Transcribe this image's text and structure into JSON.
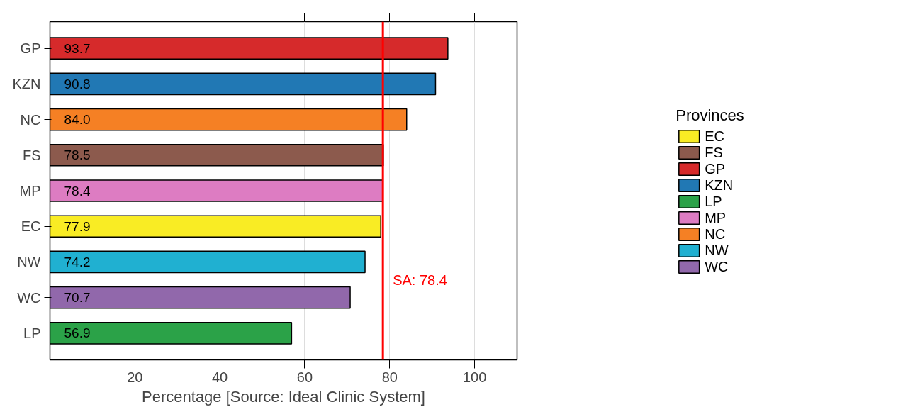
{
  "chart_data": {
    "type": "bar",
    "orientation": "horizontal",
    "xlabel": "Percentage [Source: Ideal Clinic System]",
    "legend_title": "Provinces",
    "categories": [
      "GP",
      "KZN",
      "NC",
      "FS",
      "MP",
      "EC",
      "NW",
      "WC",
      "LP"
    ],
    "series": [
      {
        "name": "EC",
        "color": "#f9ec24",
        "values": [
          null,
          null,
          null,
          null,
          null,
          77.9,
          null,
          null,
          null
        ],
        "value_labels": [
          null,
          null,
          null,
          null,
          null,
          "77.9",
          null,
          null,
          null
        ]
      },
      {
        "name": "FS",
        "color": "#8c5a4d",
        "values": [
          null,
          null,
          null,
          78.5,
          null,
          null,
          null,
          null,
          null
        ],
        "value_labels": [
          null,
          null,
          null,
          "78.5",
          null,
          null,
          null,
          null,
          null
        ]
      },
      {
        "name": "GP",
        "color": "#d62a2b",
        "values": [
          93.7,
          null,
          null,
          null,
          null,
          null,
          null,
          null,
          null
        ],
        "value_labels": [
          "93.7",
          null,
          null,
          null,
          null,
          null,
          null,
          null,
          null
        ]
      },
      {
        "name": "KZN",
        "color": "#2178b4",
        "values": [
          null,
          90.8,
          null,
          null,
          null,
          null,
          null,
          null,
          null
        ],
        "value_labels": [
          null,
          "90.8",
          null,
          null,
          null,
          null,
          null,
          null,
          null
        ]
      },
      {
        "name": "LP",
        "color": "#2ba248",
        "values": [
          null,
          null,
          null,
          null,
          null,
          null,
          null,
          null,
          56.9
        ],
        "value_labels": [
          null,
          null,
          null,
          null,
          null,
          null,
          null,
          null,
          "56.9"
        ]
      },
      {
        "name": "MP",
        "color": "#dd7cc2",
        "values": [
          null,
          null,
          null,
          null,
          78.4,
          null,
          null,
          null,
          null
        ],
        "value_labels": [
          null,
          null,
          null,
          null,
          "78.4",
          null,
          null,
          null,
          null
        ]
      },
      {
        "name": "NC",
        "color": "#f58024",
        "values": [
          null,
          null,
          84.0,
          null,
          null,
          null,
          null,
          null,
          null
        ],
        "value_labels": [
          null,
          null,
          "84.0",
          null,
          null,
          null,
          null,
          null,
          null
        ]
      },
      {
        "name": "NW",
        "color": "#20b0d1",
        "values": [
          null,
          null,
          null,
          null,
          null,
          null,
          74.2,
          null,
          null
        ],
        "value_labels": [
          null,
          null,
          null,
          null,
          null,
          null,
          "74.2",
          null,
          null
        ]
      },
      {
        "name": "WC",
        "color": "#9168ab",
        "values": [
          null,
          null,
          null,
          null,
          null,
          null,
          null,
          70.7,
          null
        ],
        "value_labels": [
          null,
          null,
          null,
          null,
          null,
          null,
          null,
          "70.7",
          null
        ]
      }
    ],
    "xlim": [
      0,
      110
    ],
    "xticks": [
      {
        "value": 0,
        "label": null
      },
      20,
      40,
      60,
      80,
      100
    ],
    "ref_lines": [
      {
        "axis": "x",
        "value": 78.4,
        "label": "SA: 78.4",
        "color": "#ff0000"
      }
    ],
    "grid": "x",
    "legend": "right"
  }
}
